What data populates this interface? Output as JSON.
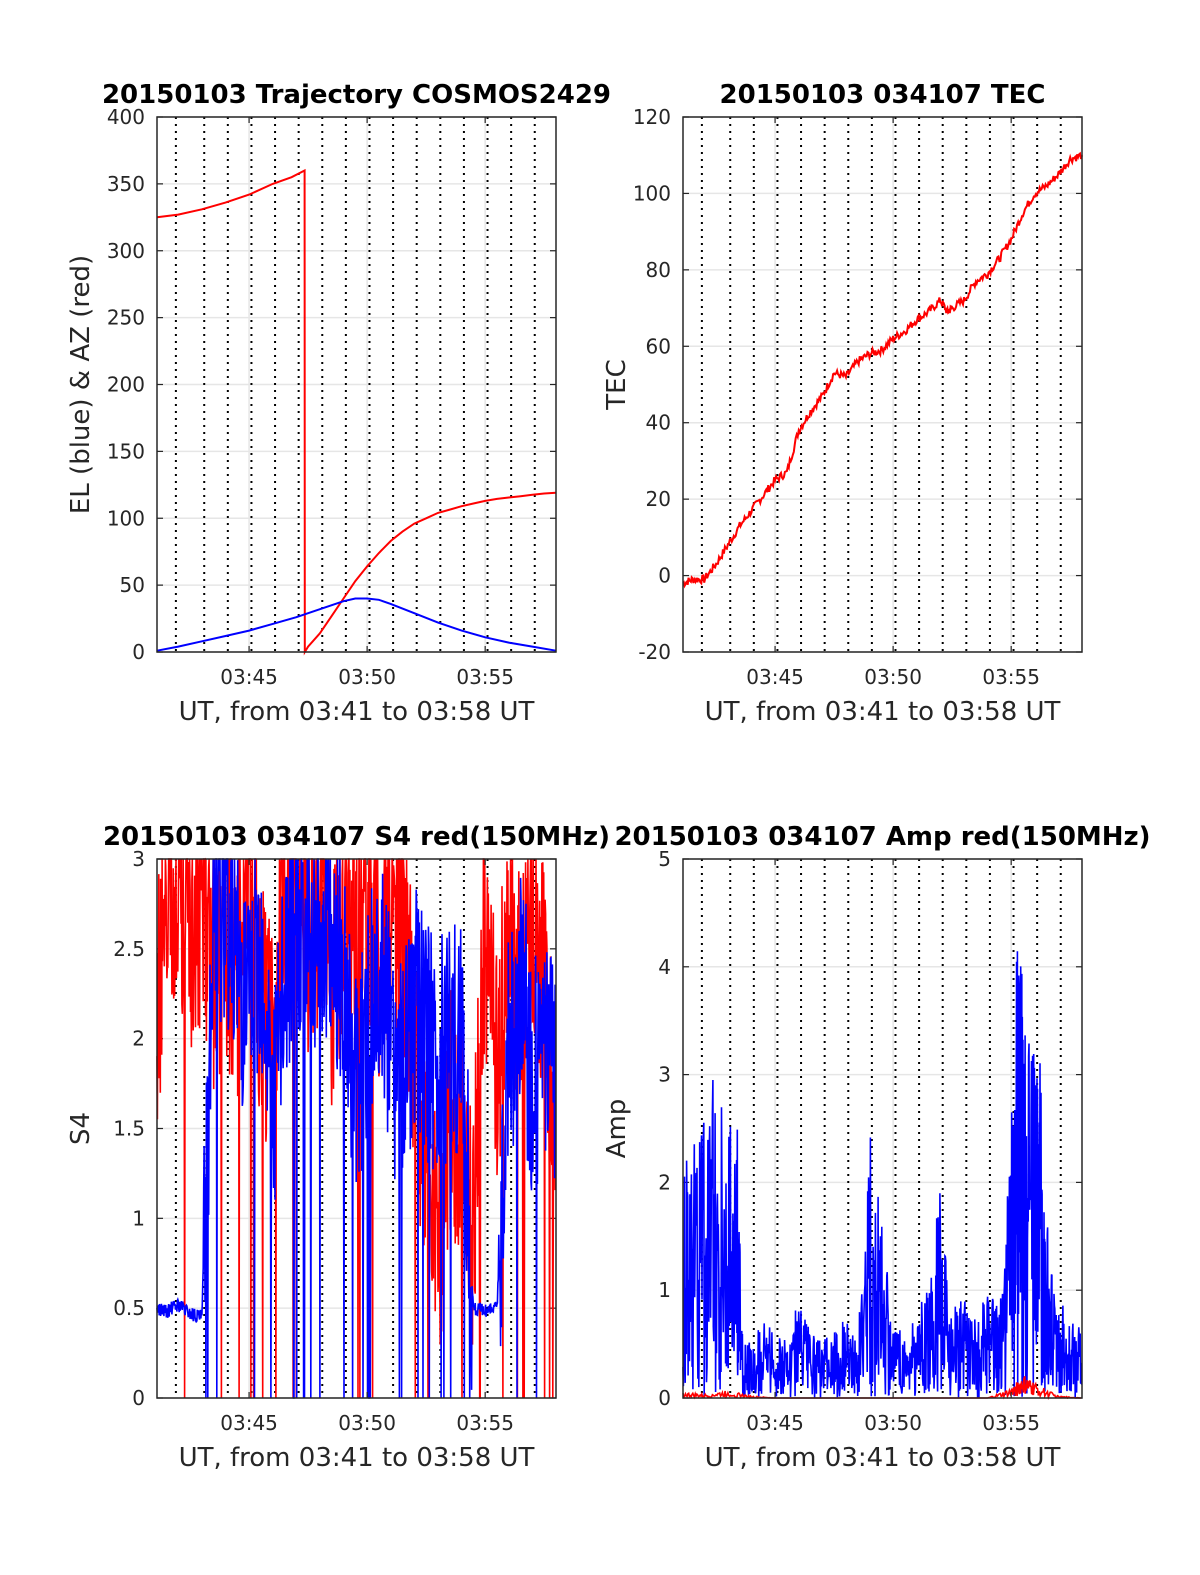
{
  "chart_data": [
    {
      "type": "line",
      "title": "20150103 Trajectory COSMOS2429",
      "xlabel": "UT, from 03:41 to 03:58 UT",
      "ylabel": "EL (blue) & AZ (red)",
      "xlim": [
        41.1,
        58.0
      ],
      "ylim": [
        0,
        400
      ],
      "xticks": [
        "03:45",
        "03:50",
        "03:55"
      ],
      "yticks": [
        "0",
        "50",
        "100",
        "150",
        "200",
        "250",
        "300",
        "350",
        "400"
      ],
      "grid": true,
      "series": [
        {
          "color": "#ff0000",
          "x": [
            41.1,
            42.0,
            43.0,
            44.0,
            45.0,
            46.0,
            46.8,
            47.35,
            47.36,
            47.5,
            48.0,
            48.5,
            49.0,
            49.5,
            50.0,
            50.5,
            51.0,
            51.5,
            52.0,
            52.5,
            53.0,
            53.5,
            54.0,
            54.5,
            55.0,
            55.5,
            56.0,
            56.5,
            57.0,
            57.5,
            58.0
          ],
          "values": [
            325,
            327,
            331,
            336,
            342,
            350,
            355,
            360,
            0,
            4,
            14,
            27,
            40,
            53,
            64,
            74,
            83,
            90,
            96,
            100,
            104,
            106.5,
            109,
            111,
            113,
            114.5,
            115.5,
            116.5,
            117.5,
            118.5,
            119
          ]
        },
        {
          "color": "#0000ff",
          "x": [
            41.1,
            42.0,
            43.0,
            44.0,
            45.0,
            46.0,
            47.0,
            48.0,
            48.5,
            49.0,
            49.5,
            50.0,
            50.5,
            51.0,
            52.0,
            53.0,
            54.0,
            55.0,
            56.0,
            57.0,
            58.0
          ],
          "values": [
            1,
            4,
            8,
            12,
            16,
            21,
            26,
            32,
            35,
            38,
            40,
            40,
            39,
            36,
            29,
            22,
            16,
            11,
            7,
            4,
            1
          ]
        }
      ]
    },
    {
      "type": "line",
      "title": "20150103 034107 TEC",
      "xlabel": "UT, from 03:41 to 03:58 UT",
      "ylabel": "TEC",
      "xlim": [
        41.1,
        58.0
      ],
      "ylim": [
        -20,
        120
      ],
      "xticks": [
        "03:45",
        "03:50",
        "03:55"
      ],
      "yticks": [
        "-20",
        "0",
        "20",
        "40",
        "60",
        "80",
        "100",
        "120"
      ],
      "grid": true,
      "series": [
        {
          "color": "#ff0000",
          "x": [
            41.1,
            41.5,
            42.0,
            42.5,
            43.0,
            43.5,
            44.0,
            44.5,
            45.0,
            45.5,
            46.0,
            46.5,
            47.0,
            47.5,
            48.0,
            48.5,
            49.0,
            49.5,
            50.0,
            50.5,
            51.0,
            51.5,
            52.0,
            52.3,
            52.5,
            53.0,
            53.5,
            54.0,
            54.5,
            55.0,
            55.5,
            56.0,
            56.5,
            57.0,
            57.5,
            58.0
          ],
          "values": [
            -2,
            -1,
            -1,
            3,
            8,
            13,
            17,
            21,
            25,
            27,
            38,
            43,
            47,
            53,
            52,
            56,
            58,
            59,
            62,
            64,
            67,
            69,
            72,
            69,
            70,
            72,
            77,
            79,
            83,
            88,
            95,
            100,
            102,
            105,
            109,
            110
          ]
        }
      ]
    },
    {
      "type": "line",
      "title": "20150103 034107 S4 red(150MHz)",
      "xlabel": "UT, from 03:41 to 03:58 UT",
      "ylabel": "S4",
      "xlim": [
        41.1,
        58.0
      ],
      "ylim": [
        0,
        3
      ],
      "xticks": [
        "03:45",
        "03:50",
        "03:55"
      ],
      "yticks": [
        "0",
        "0.5",
        "1",
        "1.5",
        "2",
        "2.5",
        "3"
      ],
      "grid": true,
      "series": [
        {
          "color": "#ff0000",
          "x": [
            41.1,
            41.5,
            42.0,
            42.5,
            43.0,
            43.5,
            44.0,
            44.5,
            45.0,
            45.5,
            46.0,
            46.5,
            47.0,
            47.5,
            48.0,
            48.5,
            49.0,
            49.5,
            50.0,
            50.5,
            51.0,
            51.5,
            52.0,
            52.5,
            53.0,
            53.5,
            54.0,
            54.5,
            55.0,
            55.5,
            56.0,
            56.5,
            57.0,
            57.5,
            58.0
          ],
          "values": [
            2.2,
            2.6,
            2.9,
            2.5,
            2.8,
            2.4,
            2.6,
            2.3,
            2.9,
            2.2,
            2.0,
            2.7,
            3.0,
            2.6,
            2.8,
            2.3,
            2.7,
            2.5,
            2.9,
            2.4,
            2.8,
            2.5,
            2.0,
            1.2,
            0.8,
            1.6,
            1.4,
            0.9,
            2.6,
            1.8,
            2.7,
            2.2,
            2.8,
            2.3,
            1.5
          ]
        },
        {
          "color": "#0000ff",
          "x": [
            41.1,
            41.5,
            42.0,
            42.5,
            43.0,
            43.5,
            44.0,
            44.5,
            45.0,
            45.5,
            46.0,
            46.5,
            47.0,
            47.5,
            48.0,
            48.5,
            49.0,
            49.5,
            50.0,
            50.5,
            51.0,
            51.5,
            52.0,
            52.5,
            53.0,
            53.5,
            54.0,
            54.5,
            55.0,
            55.5,
            56.0,
            56.5,
            57.0,
            57.5,
            58.0
          ],
          "values": [
            0.5,
            0.48,
            0.52,
            0.47,
            0.45,
            2.6,
            2.8,
            2.4,
            2.2,
            2.6,
            1.6,
            2.3,
            2.8,
            2.5,
            2.7,
            2.6,
            2.2,
            1.8,
            2.1,
            2.4,
            2.0,
            1.7,
            2.2,
            2.0,
            1.8,
            2.1,
            1.9,
            0.5,
            0.48,
            0.5,
            1.9,
            2.3,
            1.8,
            2.0,
            1.7
          ]
        }
      ]
    },
    {
      "type": "line",
      "title": "20150103 034107 Amp red(150MHz)",
      "xlabel": "UT, from 03:41 to 03:58 UT",
      "ylabel": "Amp",
      "xlim": [
        41.1,
        58.0
      ],
      "ylim": [
        0,
        5
      ],
      "xticks": [
        "03:45",
        "03:50",
        "03:55"
      ],
      "yticks": [
        "0",
        "1",
        "2",
        "3",
        "4",
        "5"
      ],
      "grid": true,
      "series": [
        {
          "color": "#0000ff",
          "x": [
            41.1,
            41.5,
            42.0,
            42.5,
            43.0,
            43.4,
            43.6,
            44.0,
            44.5,
            45.0,
            45.5,
            46.0,
            46.5,
            47.0,
            47.5,
            48.0,
            48.5,
            49.0,
            49.5,
            50.0,
            50.5,
            51.0,
            51.5,
            52.0,
            52.5,
            53.0,
            53.5,
            54.0,
            54.5,
            55.0,
            55.3,
            55.6,
            56.0,
            56.3,
            56.6,
            57.0,
            57.5,
            58.0
          ],
          "values": [
            2.1,
            2.2,
            2.8,
            3.1,
            2.6,
            2.4,
            0.6,
            0.5,
            0.7,
            0.6,
            0.5,
            0.9,
            0.6,
            0.5,
            0.6,
            0.7,
            0.5,
            2.4,
            1.6,
            0.7,
            0.6,
            0.8,
            1.0,
            1.9,
            0.8,
            0.9,
            0.7,
            1.0,
            0.8,
            2.5,
            4.4,
            3.2,
            3.5,
            2.8,
            1.2,
            0.9,
            0.7,
            0.6
          ]
        },
        {
          "color": "#ff0000",
          "x": [
            41.1,
            42.0,
            43.0,
            44.0,
            45.0,
            46.0,
            47.0,
            48.0,
            49.0,
            50.0,
            51.0,
            52.0,
            53.0,
            54.0,
            55.0,
            55.5,
            56.0,
            57.0,
            58.0
          ],
          "values": [
            0.03,
            0.02,
            0.04,
            0.01,
            0.0,
            0.0,
            0.0,
            0.0,
            0.0,
            0.0,
            0.0,
            0.0,
            0.0,
            0.0,
            0.05,
            0.12,
            0.08,
            0.01,
            0.0
          ]
        }
      ]
    }
  ]
}
